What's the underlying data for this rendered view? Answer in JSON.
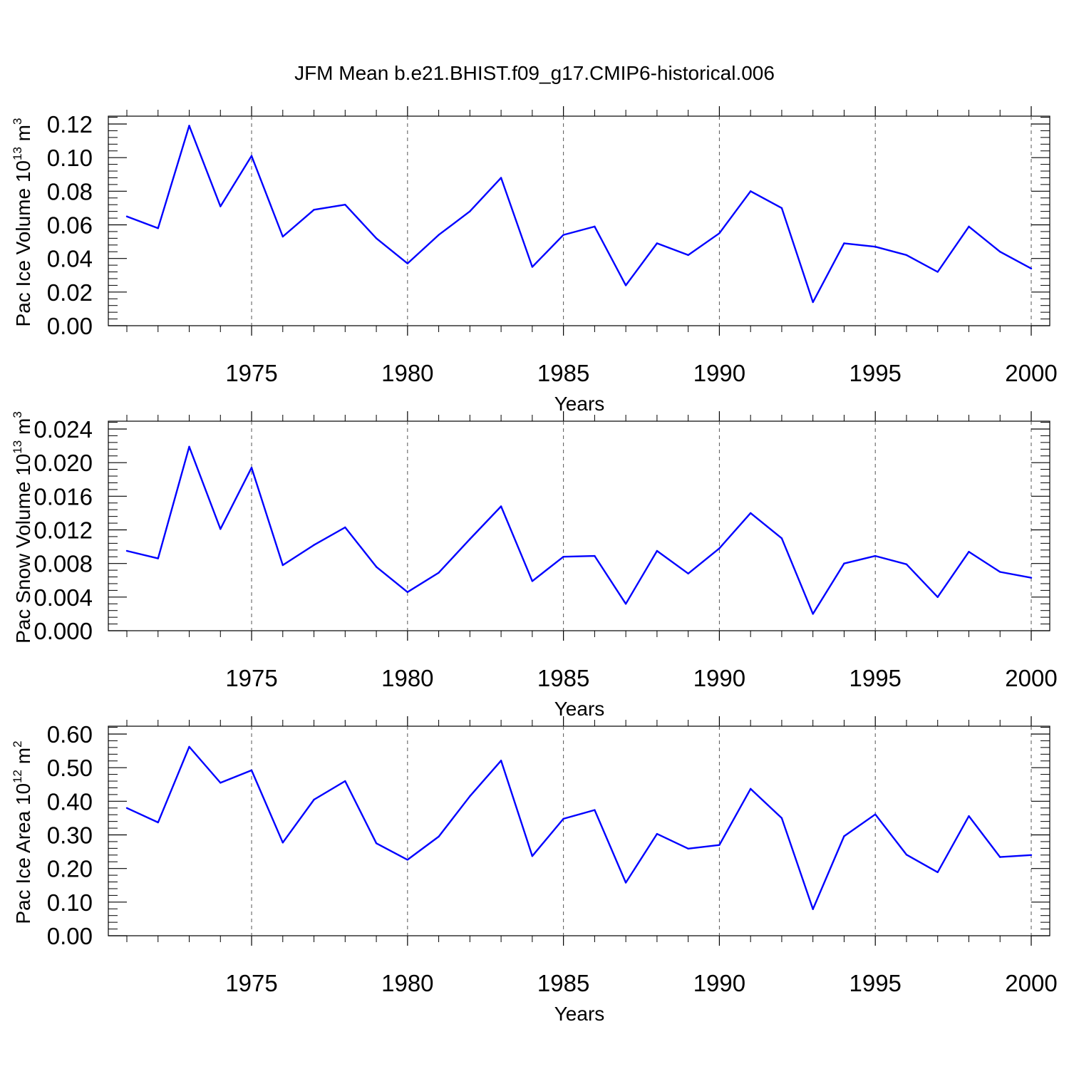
{
  "figure": {
    "title": "JFM Mean b.e21.BHIST.f09_g17.CMIP6-historical.006"
  },
  "colors": {
    "series": "#0000ff",
    "axes": "#000000"
  },
  "chart_data": [
    {
      "type": "line",
      "ylabel": "Pac Ice Volume 10",
      "ylabel_exp": "13",
      "ylabel_unit": " m",
      "ylabel_unit_exp": "3",
      "xlabel": "Years",
      "xlim": [
        1971,
        2000
      ],
      "ylim": [
        0,
        0.12
      ],
      "xticks": [
        1975,
        1980,
        1985,
        1990,
        1995,
        2000
      ],
      "yticks": [
        0,
        0.02,
        0.04,
        0.06,
        0.08,
        0.1,
        0.12
      ],
      "ytick_labels": [
        "0.00",
        "0.02",
        "0.04",
        "0.06",
        "0.08",
        "0.10",
        "0.12"
      ],
      "grid": "vertical dashed at major x ticks",
      "x": [
        1971,
        1972,
        1973,
        1974,
        1975,
        1976,
        1977,
        1978,
        1979,
        1980,
        1981,
        1982,
        1983,
        1984,
        1985,
        1986,
        1987,
        1988,
        1989,
        1990,
        1991,
        1992,
        1993,
        1994,
        1995,
        1996,
        1997,
        1998,
        1999,
        2000
      ],
      "values": [
        0.065,
        0.058,
        0.119,
        0.071,
        0.101,
        0.053,
        0.069,
        0.072,
        0.052,
        0.037,
        0.054,
        0.068,
        0.088,
        0.035,
        0.054,
        0.059,
        0.024,
        0.049,
        0.042,
        0.055,
        0.08,
        0.07,
        0.014,
        0.049,
        0.047,
        0.042,
        0.032,
        0.059,
        0.044,
        0.034
      ]
    },
    {
      "type": "line",
      "ylabel": "Pac Snow Volume 10",
      "ylabel_exp": "13",
      "ylabel_unit": " m",
      "ylabel_unit_exp": "3",
      "xlabel": "Years",
      "xlim": [
        1971,
        2000
      ],
      "ylim": [
        0,
        0.024
      ],
      "xticks": [
        1975,
        1980,
        1985,
        1990,
        1995,
        2000
      ],
      "yticks": [
        0,
        0.004,
        0.008,
        0.012,
        0.016,
        0.02,
        0.024
      ],
      "ytick_labels": [
        "0.000",
        "0.004",
        "0.008",
        "0.012",
        "0.016",
        "0.020",
        "0.024"
      ],
      "grid": "vertical dashed at major x ticks",
      "x": [
        1971,
        1972,
        1973,
        1974,
        1975,
        1976,
        1977,
        1978,
        1979,
        1980,
        1981,
        1982,
        1983,
        1984,
        1985,
        1986,
        1987,
        1988,
        1989,
        1990,
        1991,
        1992,
        1993,
        1994,
        1995,
        1996,
        1997,
        1998,
        1999,
        2000
      ],
      "values": [
        0.0095,
        0.0086,
        0.0219,
        0.0121,
        0.0194,
        0.0078,
        0.0102,
        0.0123,
        0.0076,
        0.0046,
        0.0069,
        0.0109,
        0.0148,
        0.0059,
        0.0088,
        0.0089,
        0.0032,
        0.0095,
        0.0068,
        0.0098,
        0.014,
        0.011,
        0.002,
        0.008,
        0.0089,
        0.0079,
        0.004,
        0.0094,
        0.007,
        0.0063
      ]
    },
    {
      "type": "line",
      "ylabel": "Pac Ice Area 10",
      "ylabel_exp": "12",
      "ylabel_unit": " m",
      "ylabel_unit_exp": "2",
      "xlabel": "Years",
      "xlim": [
        1971,
        2000
      ],
      "ylim": [
        0,
        0.6
      ],
      "xticks": [
        1975,
        1980,
        1985,
        1990,
        1995,
        2000
      ],
      "yticks": [
        0,
        0.1,
        0.2,
        0.3,
        0.4,
        0.5,
        0.6
      ],
      "ytick_labels": [
        "0.00",
        "0.10",
        "0.20",
        "0.30",
        "0.40",
        "0.50",
        "0.60"
      ],
      "grid": "vertical dashed at major x ticks",
      "x": [
        1971,
        1972,
        1973,
        1974,
        1975,
        1976,
        1977,
        1978,
        1979,
        1980,
        1981,
        1982,
        1983,
        1984,
        1985,
        1986,
        1987,
        1988,
        1989,
        1990,
        1991,
        1992,
        1993,
        1994,
        1995,
        1996,
        1997,
        1998,
        1999,
        2000
      ],
      "values": [
        0.38,
        0.337,
        0.562,
        0.455,
        0.492,
        0.277,
        0.405,
        0.46,
        0.275,
        0.226,
        0.295,
        0.415,
        0.521,
        0.237,
        0.348,
        0.374,
        0.158,
        0.303,
        0.259,
        0.27,
        0.437,
        0.35,
        0.079,
        0.296,
        0.361,
        0.241,
        0.189,
        0.356,
        0.234,
        0.24
      ]
    }
  ]
}
